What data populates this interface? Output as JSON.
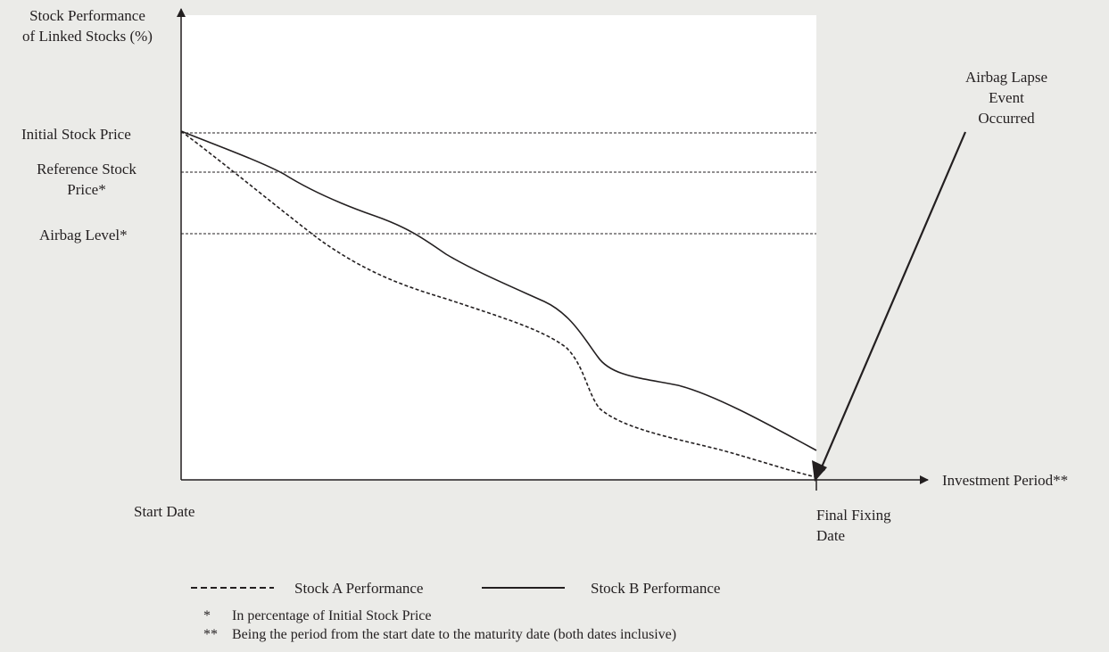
{
  "diagram": {
    "y_axis_label": [
      "Stock Performance",
      "of Linked Stocks (%)"
    ],
    "x_axis_label": "Investment Period**",
    "levels": {
      "initial": "Initial Stock Price",
      "reference": [
        "Reference Stock",
        "Price*"
      ],
      "airbag": "Airbag Level*"
    },
    "start_label": "Start Date",
    "end_label": [
      "Final Fixing",
      "Date"
    ],
    "annotation": [
      "Airbag Lapse",
      "Event",
      "Occurred"
    ],
    "legend": {
      "series_a": "Stock A Performance",
      "series_b": "Stock B Performance"
    },
    "footnotes": [
      {
        "mark": "*",
        "text": "In percentage of Initial Stock Price"
      },
      {
        "mark": "**",
        "text": "Being the period from the start date to the maturity date (both dates inclusive)"
      }
    ],
    "colors": {
      "background": "#ebebe8",
      "plot_area": "#ffffff",
      "ink": "#231f20"
    }
  }
}
